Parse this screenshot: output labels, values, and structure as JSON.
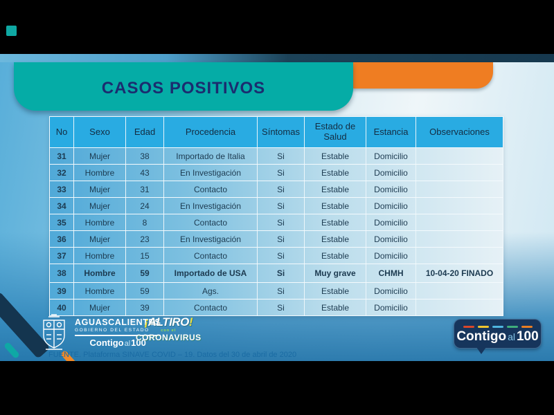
{
  "slide": {
    "title": "CASOS POSITIVOS",
    "source": "FUENTE. Plataforma SINAVE COVID – 19. Datos del 30 de abril de 2020"
  },
  "chart_data": {
    "type": "table",
    "title": "CASOS POSITIVOS",
    "columns": [
      "No",
      "Sexo",
      "Edad",
      "Procedencia",
      "Síntomas",
      "Estado de Salud",
      "Estancia",
      "Observaciones"
    ],
    "rows": [
      [
        "31",
        "Mujer",
        "38",
        "Importado de Italia",
        "Si",
        "Estable",
        "Domicilio",
        ""
      ],
      [
        "32",
        "Hombre",
        "43",
        "En Investigación",
        "Si",
        "Estable",
        "Domicilio",
        ""
      ],
      [
        "33",
        "Mujer",
        "31",
        "Contacto",
        "Si",
        "Estable",
        "Domicilio",
        ""
      ],
      [
        "34",
        "Mujer",
        "24",
        "En Investigación",
        "Si",
        "Estable",
        "Domicilio",
        ""
      ],
      [
        "35",
        "Hombre",
        "8",
        "Contacto",
        "Si",
        "Estable",
        "Domicilio",
        ""
      ],
      [
        "36",
        "Mujer",
        "23",
        "En Investigación",
        "Si",
        "Estable",
        "Domicilio",
        ""
      ],
      [
        "37",
        "Hombre",
        "15",
        "Contacto",
        "Si",
        "Estable",
        "Domicilio",
        ""
      ],
      [
        "38",
        "Hombre",
        "59",
        "Importado de USA",
        "Si",
        "Muy grave",
        "CHMH",
        "10-04-20 FINADO"
      ],
      [
        "39",
        "Hombre",
        "59",
        "Ags.",
        "Si",
        "Estable",
        "Domicilio",
        ""
      ],
      [
        "40",
        "Mujer",
        "39",
        "Contacto",
        "Si",
        "Estable",
        "Domicilio",
        ""
      ]
    ],
    "highlighted_row_no": "38"
  },
  "logos": {
    "government": {
      "name": "AGUASCALIENTES",
      "subtitle": "GOBIERNO DEL ESTADO",
      "slogan_contigo": "Contigo",
      "slogan_al": "al",
      "slogan_100": "100"
    },
    "altiro": {
      "open_excl": "¡",
      "title": "ALTIRO",
      "close_excl": "!",
      "middle": "con el",
      "subtitle": "CORONAVIRUS"
    },
    "badge": {
      "contigo": "Contigo",
      "al": "al",
      "number": "100",
      "dash_colors": [
        "#D9472B",
        "#F0C52E",
        "#4FB6E0",
        "#3FAE7C",
        "#E87E23"
      ]
    }
  },
  "colors": {
    "teal_band": "#05ACA6",
    "orange_band": "#EF7D22",
    "header_blue": "#29ABE2",
    "title_navy": "#1B2C6F",
    "badge_navy": "#16355C",
    "source_text": "#1A6BA3"
  }
}
